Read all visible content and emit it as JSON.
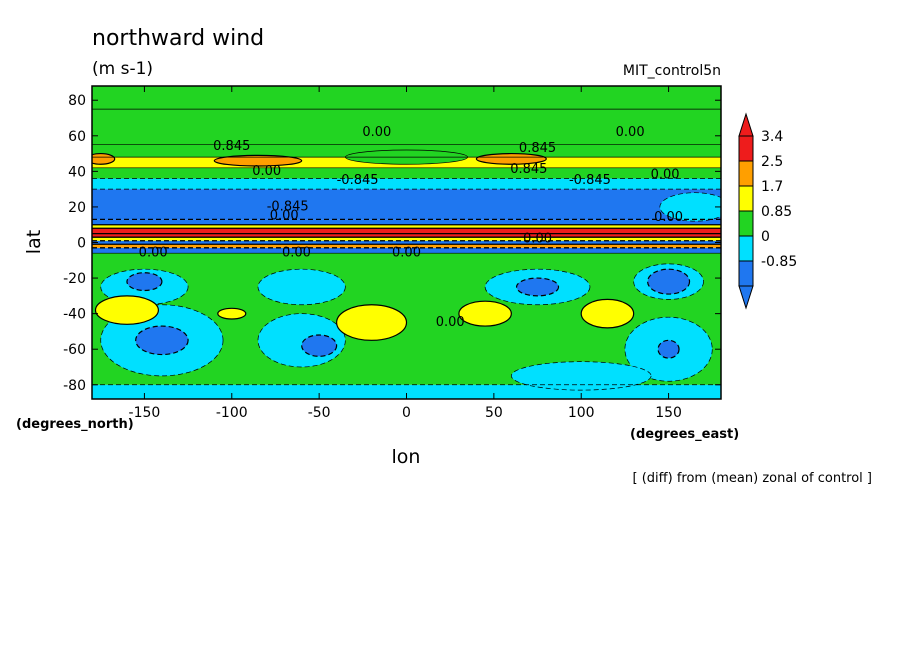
{
  "chart_data": {
    "type": "heatmap",
    "title": "northward wind",
    "units": "(m s-1)",
    "run_label": "MIT_control5n",
    "xlabel": "lon",
    "ylabel": "lat",
    "x_units": "(degrees_east)",
    "y_units": "(degrees_north)",
    "note": "[ (diff) from (mean) zonal of control ]",
    "xlim": [
      -180,
      180
    ],
    "ylim": [
      -88,
      88
    ],
    "x_ticks": [
      -150,
      -100,
      -50,
      0,
      50,
      100,
      150
    ],
    "x_tick_labels": [
      "-150",
      "-100",
      "-50",
      "0",
      "50",
      "100",
      "150"
    ],
    "y_ticks": [
      -80,
      -60,
      -40,
      -20,
      0,
      20,
      40,
      60,
      80
    ],
    "y_tick_labels": [
      "-80",
      "-60",
      "-40",
      "-20",
      "0",
      "20",
      "40",
      "60",
      "80"
    ],
    "colorbar": {
      "levels": [
        -0.85,
        0,
        0.85,
        1.7,
        2.5,
        3.4
      ],
      "labels": [
        "-0.85",
        "0",
        "0.85",
        "1.7",
        "2.5",
        "3.4"
      ],
      "colors": [
        "#1f77f0",
        "#00e0ff",
        "#22d422",
        "#ffff00",
        "#ff9f00",
        "#ee1c1c"
      ],
      "extend": "both"
    },
    "bands": [
      {
        "lat": [
          -90,
          -80
        ],
        "value": -0.4
      },
      {
        "lat": [
          -80,
          -6
        ],
        "value": 0.3
      },
      {
        "lat": [
          -6,
          -3
        ],
        "value": -2.0
      },
      {
        "lat": [
          -3,
          -1
        ],
        "value": 2.0
      },
      {
        "lat": [
          -1,
          1
        ],
        "value": -1.5
      },
      {
        "lat": [
          1,
          3
        ],
        "value": 1.2
      },
      {
        "lat": [
          3,
          5
        ],
        "value": 3.0
      },
      {
        "lat": [
          5,
          8
        ],
        "value": 2.8
      },
      {
        "lat": [
          8,
          10
        ],
        "value": 1.2
      },
      {
        "lat": [
          10,
          13
        ],
        "value": -2.0
      },
      {
        "lat": [
          13,
          30
        ],
        "value": -1.0
      },
      {
        "lat": [
          30,
          36
        ],
        "value": -0.4
      },
      {
        "lat": [
          36,
          42
        ],
        "value": 0.3
      },
      {
        "lat": [
          42,
          48
        ],
        "value": 1.0
      },
      {
        "lat": [
          48,
          55
        ],
        "value": 0.6
      },
      {
        "lat": [
          55,
          75
        ],
        "value": 0.2
      },
      {
        "lat": [
          75,
          90
        ],
        "value": 0.1
      }
    ],
    "features": [
      {
        "kind": "ellipse",
        "lon": -85,
        "lat": 46,
        "rlon": 25,
        "rlat": 3,
        "value": 2.0
      },
      {
        "kind": "ellipse",
        "lon": 60,
        "lat": 47,
        "rlon": 20,
        "rlat": 3,
        "value": 2.0
      },
      {
        "kind": "ellipse",
        "lon": -175,
        "lat": 47,
        "rlon": 8,
        "rlat": 3,
        "value": 2.0
      },
      {
        "kind": "ellipse",
        "lon": 0,
        "lat": 48,
        "rlon": 35,
        "rlat": 4,
        "value": 0.2
      },
      {
        "kind": "ellipse",
        "lon": 165,
        "lat": 20,
        "rlon": 20,
        "rlat": 8,
        "value": -0.3
      },
      {
        "kind": "ellipse",
        "lon": -150,
        "lat": -25,
        "rlon": 25,
        "rlat": 10,
        "value": -0.5
      },
      {
        "kind": "ellipse",
        "lon": -60,
        "lat": -25,
        "rlon": 25,
        "rlat": 10,
        "value": -0.5
      },
      {
        "kind": "ellipse",
        "lon": 75,
        "lat": -25,
        "rlon": 30,
        "rlat": 10,
        "value": -0.5
      },
      {
        "kind": "ellipse",
        "lon": 150,
        "lat": -22,
        "rlon": 20,
        "rlat": 10,
        "value": -0.5
      },
      {
        "kind": "ellipse",
        "lon": -140,
        "lat": -55,
        "rlon": 35,
        "rlat": 20,
        "value": -0.5
      },
      {
        "kind": "ellipse",
        "lon": -60,
        "lat": -55,
        "rlon": 25,
        "rlat": 15,
        "value": -0.5
      },
      {
        "kind": "ellipse",
        "lon": 150,
        "lat": -60,
        "rlon": 25,
        "rlat": 18,
        "value": -0.5
      },
      {
        "kind": "ellipse",
        "lon": 100,
        "lat": -75,
        "rlon": 40,
        "rlat": 8,
        "value": -0.4
      },
      {
        "kind": "ellipse",
        "lon": -160,
        "lat": -38,
        "rlon": 18,
        "rlat": 8,
        "value": 1.0
      },
      {
        "kind": "ellipse",
        "lon": -20,
        "lat": -45,
        "rlon": 20,
        "rlat": 10,
        "value": 1.0
      },
      {
        "kind": "ellipse",
        "lon": 45,
        "lat": -40,
        "rlon": 15,
        "rlat": 7,
        "value": 1.0
      },
      {
        "kind": "ellipse",
        "lon": 115,
        "lat": -40,
        "rlon": 15,
        "rlat": 8,
        "value": 1.0
      },
      {
        "kind": "ellipse",
        "lon": -100,
        "lat": -40,
        "rlon": 8,
        "rlat": 3,
        "value": 1.0
      },
      {
        "kind": "ellipse",
        "lon": -140,
        "lat": -55,
        "rlon": 15,
        "rlat": 8,
        "value": -1.0
      },
      {
        "kind": "ellipse",
        "lon": -150,
        "lat": -22,
        "rlon": 10,
        "rlat": 5,
        "value": -1.0
      },
      {
        "kind": "ellipse",
        "lon": -50,
        "lat": -58,
        "rlon": 10,
        "rlat": 6,
        "value": -1.0
      },
      {
        "kind": "ellipse",
        "lon": 75,
        "lat": -25,
        "rlon": 12,
        "rlat": 5,
        "value": -1.0
      },
      {
        "kind": "ellipse",
        "lon": 150,
        "lat": -22,
        "rlon": 12,
        "rlat": 7,
        "value": -1.0
      },
      {
        "kind": "ellipse",
        "lon": 150,
        "lat": -60,
        "rlon": 6,
        "rlat": 5,
        "value": -1.0
      }
    ],
    "contour_labels": [
      {
        "text": "0.845",
        "lon": -100,
        "lat": 52
      },
      {
        "text": "0.845",
        "lon": 75,
        "lat": 51
      },
      {
        "text": "0.845",
        "lon": 70,
        "lat": 39
      },
      {
        "text": "0.00",
        "lon": -17,
        "lat": 60
      },
      {
        "text": "0.00",
        "lon": 128,
        "lat": 60
      },
      {
        "text": "0.00",
        "lon": -80,
        "lat": 38
      },
      {
        "text": "0.00",
        "lon": 148,
        "lat": 36
      },
      {
        "text": "-0.845",
        "lon": -28,
        "lat": 33
      },
      {
        "text": "-0.845",
        "lon": 105,
        "lat": 33
      },
      {
        "text": "-0.845",
        "lon": -68,
        "lat": 18
      },
      {
        "text": "0.00",
        "lon": -70,
        "lat": 13
      },
      {
        "text": "0.00",
        "lon": 150,
        "lat": 12
      },
      {
        "text": "0.00",
        "lon": 75,
        "lat": 0
      },
      {
        "text": "0.00",
        "lon": -145,
        "lat": -8
      },
      {
        "text": "0.00",
        "lon": -63,
        "lat": -8
      },
      {
        "text": "0.00",
        "lon": 0,
        "lat": -8
      },
      {
        "text": "0.00",
        "lon": 25,
        "lat": -47
      }
    ]
  }
}
